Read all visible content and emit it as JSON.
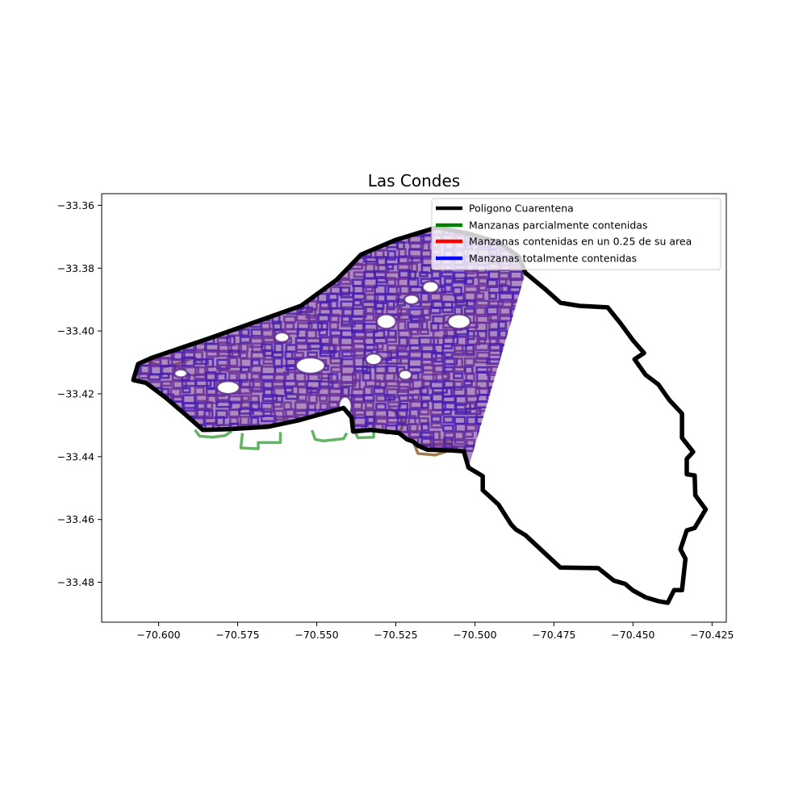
{
  "chart_data": {
    "type": "map",
    "title": "Las Condes",
    "xlabel": "",
    "ylabel": "",
    "xlim": [
      -70.618,
      -70.4205
    ],
    "ylim": [
      -33.4927,
      -33.3563
    ],
    "grid": false,
    "legend_placement": "top-right",
    "x_ticks": [
      -70.6,
      -70.575,
      -70.55,
      -70.525,
      -70.5,
      -70.475,
      -70.45,
      -70.425
    ],
    "x_tick_labels": [
      "−70.600",
      "−70.575",
      "−70.550",
      "−70.525",
      "−70.500",
      "−70.475",
      "−70.450",
      "−70.425"
    ],
    "y_ticks": [
      -33.36,
      -33.38,
      -33.4,
      -33.42,
      -33.44,
      -33.46,
      -33.48
    ],
    "y_tick_labels": [
      "−33.36",
      "−33.38",
      "−33.40",
      "−33.42",
      "−33.44",
      "−33.46",
      "−33.48"
    ],
    "legend": [
      {
        "label": "Poligono Cuarentena",
        "color": "#000000"
      },
      {
        "label": "Manzanas parcialmente contenidas",
        "color": "#008000"
      },
      {
        "label": "Manzanas contenidas en un 0.25 de su area",
        "color": "#ff0000"
      },
      {
        "label": "Manzanas totalmente contenidas",
        "color": "#0000ff"
      }
    ],
    "series": [
      {
        "name": "Poligono Cuarentena",
        "color": "#000000",
        "kind": "polygon",
        "points": [
          [
            -70.608,
            -33.4156
          ],
          [
            -70.6065,
            -33.4105
          ],
          [
            -70.602,
            -33.4085
          ],
          [
            -70.583,
            -33.402
          ],
          [
            -70.555,
            -33.392
          ],
          [
            -70.5437,
            -33.3837
          ],
          [
            -70.536,
            -33.3757
          ],
          [
            -70.525,
            -33.371
          ],
          [
            -70.512,
            -33.367
          ],
          [
            -70.502,
            -33.369
          ],
          [
            -70.492,
            -33.372
          ],
          [
            -70.486,
            -33.3765
          ],
          [
            -70.484,
            -33.3815
          ],
          [
            -70.478,
            -33.3865
          ],
          [
            -70.473,
            -33.391
          ],
          [
            -70.467,
            -33.392
          ],
          [
            -70.458,
            -33.3925
          ],
          [
            -70.454,
            -33.3975
          ],
          [
            -70.45,
            -33.403
          ],
          [
            -70.4465,
            -33.407
          ],
          [
            -70.4495,
            -33.409
          ],
          [
            -70.446,
            -33.414
          ],
          [
            -70.442,
            -33.417
          ],
          [
            -70.4385,
            -33.422
          ],
          [
            -70.4345,
            -33.4263
          ],
          [
            -70.4345,
            -33.434
          ],
          [
            -70.431,
            -33.4385
          ],
          [
            -70.433,
            -33.4407
          ],
          [
            -70.433,
            -33.4456
          ],
          [
            -70.4305,
            -33.446
          ],
          [
            -70.4303,
            -33.4523
          ],
          [
            -70.427,
            -33.4568
          ],
          [
            -70.4305,
            -33.4627
          ],
          [
            -70.433,
            -33.4635
          ],
          [
            -70.435,
            -33.4695
          ],
          [
            -70.4334,
            -33.4725
          ],
          [
            -70.4345,
            -33.4825
          ],
          [
            -70.437,
            -33.4825
          ],
          [
            -70.439,
            -33.4865
          ],
          [
            -70.442,
            -33.486
          ],
          [
            -70.446,
            -33.4848
          ],
          [
            -70.45,
            -33.4826
          ],
          [
            -70.4525,
            -33.4805
          ],
          [
            -70.456,
            -33.4795
          ],
          [
            -70.461,
            -33.4755
          ],
          [
            -70.473,
            -33.4753
          ],
          [
            -70.484,
            -33.465
          ],
          [
            -70.487,
            -33.4632
          ],
          [
            -70.4886,
            -33.4615
          ],
          [
            -70.4925,
            -33.4553
          ],
          [
            -70.4955,
            -33.4525
          ],
          [
            -70.4975,
            -33.4507
          ],
          [
            -70.4975,
            -33.4462
          ],
          [
            -70.502,
            -33.4435
          ],
          [
            -70.5035,
            -33.4383
          ],
          [
            -70.5075,
            -33.438
          ],
          [
            -70.515,
            -33.4378
          ],
          [
            -70.518,
            -33.4365
          ],
          [
            -70.5195,
            -33.4352
          ],
          [
            -70.5215,
            -33.4345
          ],
          [
            -70.524,
            -33.4325
          ],
          [
            -70.533,
            -33.4315
          ],
          [
            -70.5385,
            -33.432
          ],
          [
            -70.539,
            -33.4275
          ],
          [
            -70.5415,
            -33.4245
          ],
          [
            -70.548,
            -33.4263
          ],
          [
            -70.556,
            -33.4285
          ],
          [
            -70.5655,
            -33.4305
          ],
          [
            -70.577,
            -33.4312
          ],
          [
            -70.586,
            -33.4315
          ],
          [
            -70.592,
            -33.4262
          ],
          [
            -70.5978,
            -33.4212
          ],
          [
            -70.604,
            -33.4165
          ],
          [
            -70.608,
            -33.4156
          ]
        ]
      }
    ]
  }
}
